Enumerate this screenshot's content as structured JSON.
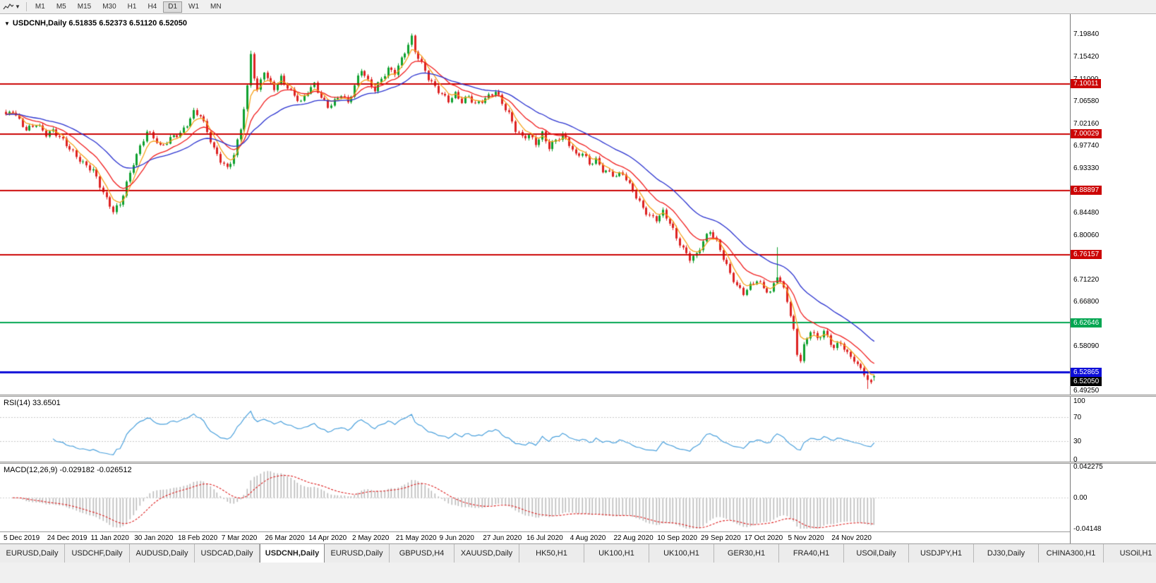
{
  "toolbar": {
    "timeframes": [
      "M1",
      "M5",
      "M15",
      "M30",
      "H1",
      "H4",
      "D1",
      "W1",
      "MN"
    ],
    "active_timeframe": "D1"
  },
  "chart": {
    "collapse_icon": "▼",
    "title_symbol": "USDCNH,Daily",
    "title_ohlc": "6.51835 6.52373 6.51120 6.52050"
  },
  "chart_data": {
    "type": "candlestick",
    "symbol": "USDCNH",
    "timeframe": "Daily",
    "ohlc": {
      "open": 6.51835,
      "high": 6.52373,
      "low": 6.5112,
      "close": 6.5205
    },
    "ylim": [
      6.484,
      7.238
    ],
    "num_candles": 260,
    "candle_start_x": 8,
    "candle_dx": 4.75,
    "up_color": "#0fa12f",
    "down_color": "#dd2222",
    "y_ticks": [
      {
        "label": "7.19840",
        "value": 7.1984
      },
      {
        "label": "7.15420",
        "value": 7.1542
      },
      {
        "label": "7.11000",
        "value": 7.11
      },
      {
        "label": "7.06580",
        "value": 7.0658
      },
      {
        "label": "7.02160",
        "value": 7.0216
      },
      {
        "label": "6.97740",
        "value": 6.9774
      },
      {
        "label": "6.93330",
        "value": 6.9333
      },
      {
        "label": "6.84480",
        "value": 6.8448
      },
      {
        "label": "6.80060",
        "value": 6.8006
      },
      {
        "label": "6.71220",
        "value": 6.7122
      },
      {
        "label": "6.66800",
        "value": 6.668
      },
      {
        "label": "6.58090",
        "value": 6.5809
      },
      {
        "label": "6.49250",
        "value": 6.4925
      }
    ],
    "x_labels": [
      {
        "idx": 0,
        "label": "5 Dec 2019"
      },
      {
        "idx": 13,
        "label": "24 Dec 2019"
      },
      {
        "idx": 26,
        "label": "11 Jan 2020"
      },
      {
        "idx": 39,
        "label": "30 Jan 2020"
      },
      {
        "idx": 52,
        "label": "18 Feb 2020"
      },
      {
        "idx": 65,
        "label": "7 Mar 2020"
      },
      {
        "idx": 78,
        "label": "26 Mar 2020"
      },
      {
        "idx": 91,
        "label": "14 Apr 2020"
      },
      {
        "idx": 104,
        "label": "2 May 2020"
      },
      {
        "idx": 117,
        "label": "21 May 2020"
      },
      {
        "idx": 130,
        "label": "9 Jun 2020"
      },
      {
        "idx": 143,
        "label": "27 Jun 2020"
      },
      {
        "idx": 156,
        "label": "16 Jul 2020"
      },
      {
        "idx": 169,
        "label": "4 Aug 2020"
      },
      {
        "idx": 182,
        "label": "22 Aug 2020"
      },
      {
        "idx": 195,
        "label": "10 Sep 2020"
      },
      {
        "idx": 208,
        "label": "29 Sep 2020"
      },
      {
        "idx": 221,
        "label": "17 Oct 2020"
      },
      {
        "idx": 234,
        "label": "5 Nov 2020"
      },
      {
        "idx": 247,
        "label": "24 Nov 2020"
      }
    ],
    "hlines": [
      {
        "value": 7.10011,
        "label": "7.10011",
        "color": "#cc0404",
        "width": 2
      },
      {
        "value": 7.00029,
        "label": "7.00029",
        "color": "#cc0404",
        "width": 2
      },
      {
        "value": 6.88897,
        "label": "6.88897",
        "color": "#cc0404",
        "width": 2
      },
      {
        "value": 6.76157,
        "label": "6.76157",
        "color": "#cc0404",
        "width": 2
      },
      {
        "value": 6.62646,
        "label": "6.62646",
        "color": "#00a651",
        "width": 2
      },
      {
        "value": 6.52865,
        "label": "6.52865",
        "color": "#0d0dd8",
        "width": 3
      }
    ],
    "current_price": {
      "label": "6.52050",
      "value": 6.5205,
      "bg": "#000000"
    },
    "price_path": [
      [
        0,
        7.034
      ],
      [
        2,
        7.046
      ],
      [
        4,
        7.028
      ],
      [
        6,
        7.012
      ],
      [
        9,
        7.022
      ],
      [
        12,
        6.998
      ],
      [
        14,
        7.004
      ],
      [
        17,
        6.986
      ],
      [
        20,
        6.966
      ],
      [
        23,
        6.945
      ],
      [
        26,
        6.928
      ],
      [
        28,
        6.896
      ],
      [
        30,
        6.868
      ],
      [
        32,
        6.846
      ],
      [
        34,
        6.862
      ],
      [
        36,
        6.905
      ],
      [
        38,
        6.946
      ],
      [
        40,
        6.976
      ],
      [
        42,
        7.004
      ],
      [
        44,
        6.992
      ],
      [
        46,
        6.972
      ],
      [
        48,
        6.984
      ],
      [
        50,
        6.998
      ],
      [
        52,
        7.004
      ],
      [
        54,
        7.022
      ],
      [
        56,
        7.044
      ],
      [
        58,
        7.036
      ],
      [
        60,
        7.002
      ],
      [
        62,
        6.968
      ],
      [
        64,
        6.948
      ],
      [
        66,
        6.934
      ],
      [
        68,
        6.962
      ],
      [
        70,
        7.014
      ],
      [
        72,
        7.092
      ],
      [
        73,
        7.158
      ],
      [
        74,
        7.112
      ],
      [
        75,
        7.082
      ],
      [
        76,
        7.104
      ],
      [
        77,
        7.124
      ],
      [
        78,
        7.108
      ],
      [
        80,
        7.092
      ],
      [
        82,
        7.114
      ],
      [
        84,
        7.096
      ],
      [
        86,
        7.078
      ],
      [
        88,
        7.062
      ],
      [
        90,
        7.082
      ],
      [
        92,
        7.096
      ],
      [
        94,
        7.072
      ],
      [
        96,
        7.056
      ],
      [
        98,
        7.068
      ],
      [
        100,
        7.082
      ],
      [
        102,
        7.062
      ],
      [
        104,
        7.094
      ],
      [
        106,
        7.126
      ],
      [
        108,
        7.102
      ],
      [
        110,
        7.088
      ],
      [
        112,
        7.112
      ],
      [
        114,
        7.132
      ],
      [
        116,
        7.124
      ],
      [
        118,
        7.148
      ],
      [
        120,
        7.176
      ],
      [
        121,
        7.188
      ],
      [
        122,
        7.162
      ],
      [
        124,
        7.138
      ],
      [
        126,
        7.112
      ],
      [
        128,
        7.096
      ],
      [
        130,
        7.082
      ],
      [
        132,
        7.068
      ],
      [
        134,
        7.078
      ],
      [
        136,
        7.062
      ],
      [
        138,
        7.072
      ],
      [
        140,
        7.058
      ],
      [
        142,
        7.068
      ],
      [
        144,
        7.078
      ],
      [
        146,
        7.088
      ],
      [
        148,
        7.062
      ],
      [
        150,
        7.038
      ],
      [
        152,
        7.006
      ],
      [
        154,
        6.992
      ],
      [
        156,
        6.998
      ],
      [
        158,
        6.984
      ],
      [
        160,
        7.004
      ],
      [
        162,
        6.976
      ],
      [
        164,
        6.988
      ],
      [
        166,
        6.996
      ],
      [
        168,
        6.978
      ],
      [
        170,
        6.956
      ],
      [
        172,
        6.964
      ],
      [
        174,
        6.944
      ],
      [
        176,
        6.952
      ],
      [
        178,
        6.93
      ],
      [
        180,
        6.922
      ],
      [
        182,
        6.914
      ],
      [
        184,
        6.92
      ],
      [
        186,
        6.898
      ],
      [
        188,
        6.878
      ],
      [
        190,
        6.856
      ],
      [
        192,
        6.84
      ],
      [
        194,
        6.832
      ],
      [
        196,
        6.844
      ],
      [
        198,
        6.822
      ],
      [
        200,
        6.792
      ],
      [
        202,
        6.772
      ],
      [
        204,
        6.756
      ],
      [
        206,
        6.764
      ],
      [
        208,
        6.79
      ],
      [
        210,
        6.808
      ],
      [
        212,
        6.784
      ],
      [
        214,
        6.752
      ],
      [
        216,
        6.722
      ],
      [
        218,
        6.7
      ],
      [
        220,
        6.688
      ],
      [
        222,
        6.702
      ],
      [
        224,
        6.712
      ],
      [
        226,
        6.694
      ],
      [
        228,
        6.682
      ],
      [
        230,
        6.718
      ],
      [
        232,
        6.692
      ],
      [
        233,
        6.672
      ],
      [
        235,
        6.612
      ],
      [
        236,
        6.568
      ],
      [
        237,
        6.556
      ],
      [
        238,
        6.582
      ],
      [
        240,
        6.612
      ],
      [
        242,
        6.592
      ],
      [
        244,
        6.606
      ],
      [
        246,
        6.584
      ],
      [
        247,
        6.576
      ],
      [
        249,
        6.588
      ],
      [
        251,
        6.568
      ],
      [
        253,
        6.552
      ],
      [
        255,
        6.536
      ],
      [
        257,
        6.512
      ],
      [
        258,
        6.506
      ],
      [
        259,
        6.5205
      ]
    ],
    "wick_spikes_high": [
      [
        73,
        7.1655
      ],
      [
        121,
        7.1968
      ],
      [
        230,
        6.776
      ]
    ],
    "wick_spikes_low": [
      [
        32,
        6.8425
      ],
      [
        205,
        6.7445
      ],
      [
        237,
        6.5505
      ],
      [
        257,
        6.4952
      ]
    ],
    "moving_averages": [
      {
        "period": 5,
        "type": "EMA",
        "color": "#f6a21a"
      },
      {
        "period": 13,
        "type": "EMA",
        "color": "#f01e1e"
      },
      {
        "period": 30,
        "type": "EMA",
        "color": "#2a32cf"
      }
    ],
    "indicators": {
      "rsi": {
        "label": "RSI(14) 33.6501",
        "period": 14,
        "value": 33.6501,
        "levels": [
          70,
          30
        ],
        "y_ticks": [
          {
            "label": "100",
            "value": 100
          },
          {
            "label": "70",
            "value": 70
          },
          {
            "label": "30",
            "value": 30
          },
          {
            "label": "0",
            "value": 0
          }
        ],
        "line_color": "#4aa0dc"
      },
      "macd": {
        "label": "MACD(12,26,9) -0.029182 -0.026512",
        "fast": 12,
        "slow": 26,
        "signal_period": 9,
        "macd_value": -0.029182,
        "signal_value": -0.026512,
        "ylim": [
          -0.04148,
          0.042275
        ],
        "y_ticks": [
          {
            "label": "0.042275",
            "value": 0.042275
          },
          {
            "label": "0.00",
            "value": 0
          },
          {
            "label": "-0.04148",
            "value": -0.04148
          }
        ],
        "histogram_color": "#bbbbbb",
        "signal_color": "#dd2222"
      }
    }
  },
  "tabs": {
    "items": [
      {
        "label": "EURUSD,Daily",
        "active": false
      },
      {
        "label": "USDCHF,Daily",
        "active": false
      },
      {
        "label": "AUDUSD,Daily",
        "active": false
      },
      {
        "label": "USDCAD,Daily",
        "active": false
      },
      {
        "label": "USDCNH,Daily",
        "active": true
      },
      {
        "label": "EURUSD,Daily",
        "active": false
      },
      {
        "label": "GBPUSD,H4",
        "active": false
      },
      {
        "label": "XAUUSD,Daily",
        "active": false
      },
      {
        "label": "HK50,H1",
        "active": false
      },
      {
        "label": "UK100,H1",
        "active": false
      },
      {
        "label": "UK100,H1",
        "active": false
      },
      {
        "label": "GER30,H1",
        "active": false
      },
      {
        "label": "FRA40,H1",
        "active": false
      },
      {
        "label": "USOil,Daily",
        "active": false
      },
      {
        "label": "USDJPY,H1",
        "active": false
      },
      {
        "label": "DJ30,Daily",
        "active": false
      },
      {
        "label": "CHINA300,H1",
        "active": false
      },
      {
        "label": "USOil,H1",
        "active": false
      }
    ]
  }
}
